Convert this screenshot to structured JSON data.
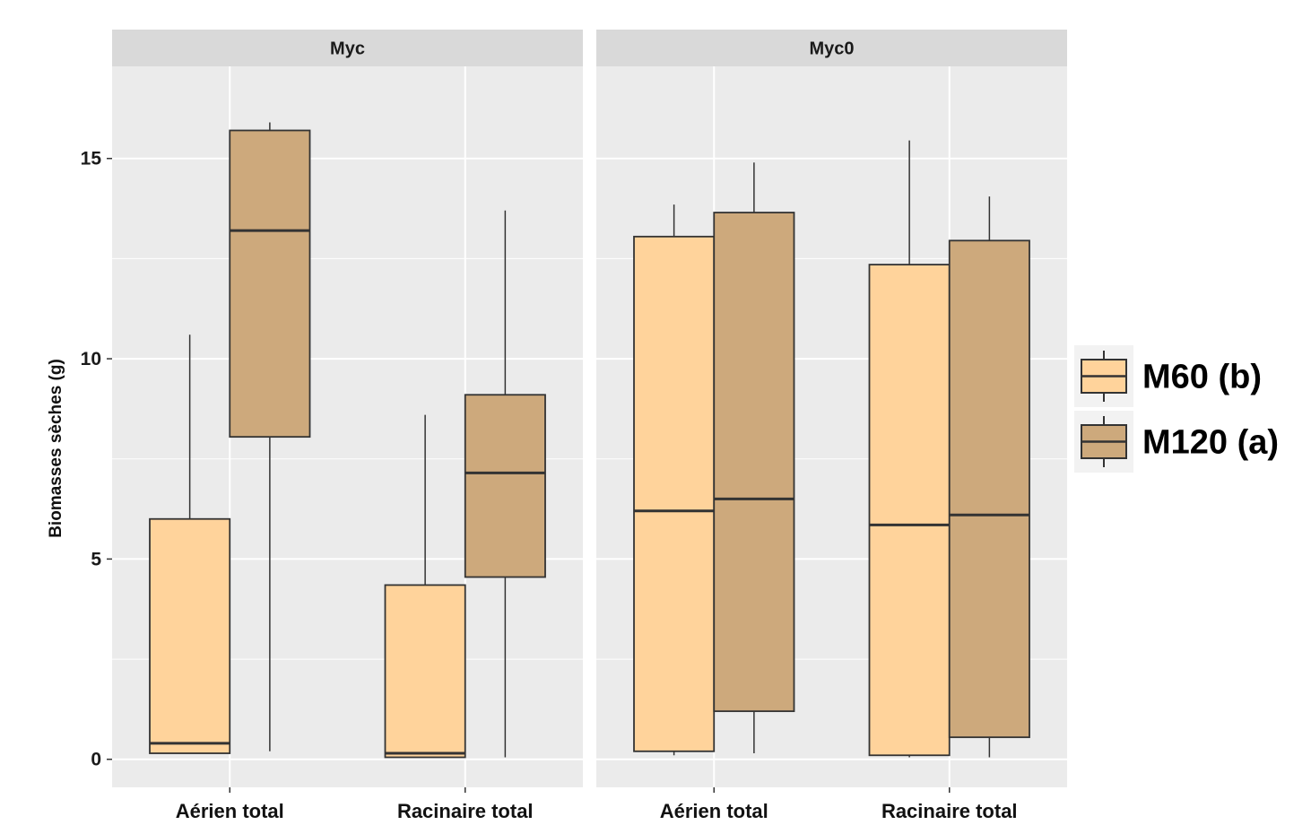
{
  "chart_data": {
    "type": "boxplot",
    "ylabel": "Biomasses sèches (g)",
    "ylim": [
      -0.7,
      17.3
    ],
    "yticks": [
      0,
      5,
      10,
      15
    ],
    "categories": [
      "Aérien total",
      "Racinaire total"
    ],
    "facets": [
      {
        "name": "Myc",
        "boxes": [
          {
            "category": "Aérien total",
            "series": "M60 (b)",
            "min": 0.15,
            "q1": 0.15,
            "median": 0.4,
            "q3": 6.0,
            "max": 10.6
          },
          {
            "category": "Aérien total",
            "series": "M120 (a)",
            "min": 0.2,
            "q1": 8.05,
            "median": 13.2,
            "q3": 15.7,
            "max": 15.9
          },
          {
            "category": "Racinaire total",
            "series": "M60 (b)",
            "min": 0.05,
            "q1": 0.05,
            "median": 0.15,
            "q3": 4.35,
            "max": 8.6
          },
          {
            "category": "Racinaire total",
            "series": "M120 (a)",
            "min": 0.05,
            "q1": 4.55,
            "median": 7.15,
            "q3": 9.1,
            "max": 13.7
          }
        ]
      },
      {
        "name": "Myc0",
        "boxes": [
          {
            "category": "Aérien total",
            "series": "M60 (b)",
            "min": 0.1,
            "q1": 0.2,
            "median": 6.2,
            "q3": 13.05,
            "max": 13.85
          },
          {
            "category": "Aérien total",
            "series": "M120 (a)",
            "min": 0.15,
            "q1": 1.2,
            "median": 6.5,
            "q3": 13.65,
            "max": 14.9
          },
          {
            "category": "Racinaire total",
            "series": "M60 (b)",
            "min": 0.05,
            "q1": 0.1,
            "median": 5.85,
            "q3": 12.35,
            "max": 15.45
          },
          {
            "category": "Racinaire total",
            "series": "M120 (a)",
            "min": 0.05,
            "q1": 0.55,
            "median": 6.1,
            "q3": 12.95,
            "max": 14.05
          }
        ]
      }
    ],
    "legend": {
      "placement": "right",
      "items": [
        {
          "label": "M60 (b)",
          "color": "#ffd39b"
        },
        {
          "label": "M120 (a)",
          "color": "#cda97c"
        }
      ]
    },
    "colors": {
      "panel_bg": "#ebebeb",
      "strip_bg": "#d9d9d9",
      "grid": "#ffffff",
      "box_line": "#333333"
    }
  }
}
